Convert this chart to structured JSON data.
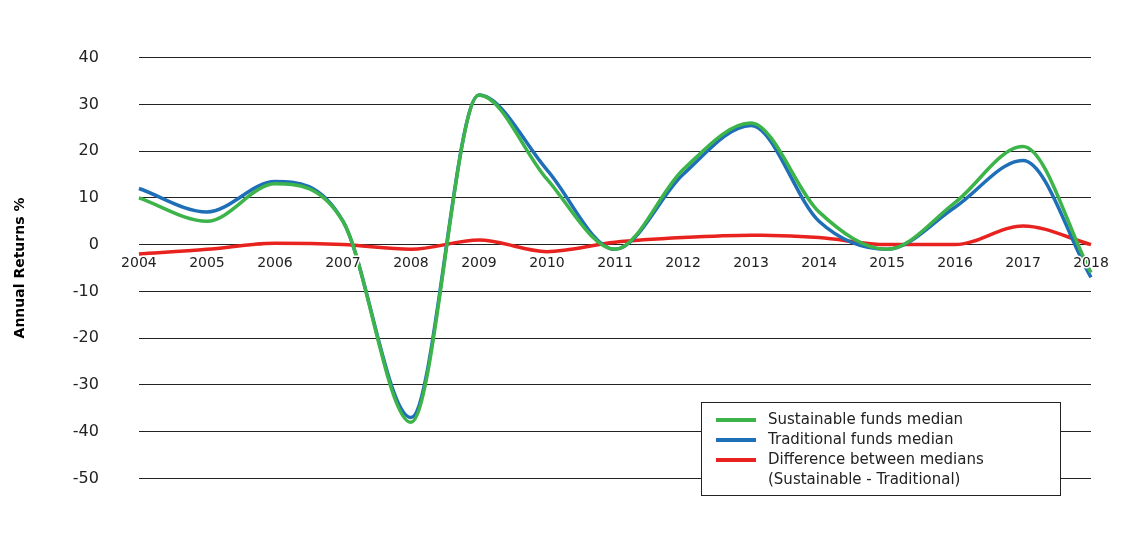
{
  "chart_data": {
    "type": "line",
    "ylabel": "Annual Returns %",
    "categories": [
      "2004",
      "2005",
      "2006",
      "2007",
      "2008",
      "2009",
      "2010",
      "2011",
      "2012",
      "2013",
      "2014",
      "2015",
      "2016",
      "2017",
      "2018"
    ],
    "series": [
      {
        "name": "Sustainable funds median",
        "color": "#3cb44a",
        "values": [
          10,
          5,
          13,
          5,
          -38,
          32,
          14,
          -1,
          16,
          26,
          7,
          -1,
          9,
          21,
          -6
        ]
      },
      {
        "name": "Traditional funds median",
        "color": "#1f6fb8",
        "values": [
          12,
          7,
          13.5,
          5,
          -37,
          32,
          16,
          -1,
          15,
          25.5,
          5,
          -1,
          8,
          18,
          -7
        ]
      },
      {
        "name": "Difference between medians (Sustainable - Traditional)",
        "color": "#e8231f",
        "values": [
          -2,
          -1,
          0.3,
          0,
          -1,
          1,
          -1.5,
          0.5,
          1.5,
          2,
          1.5,
          0,
          0,
          4,
          0
        ]
      }
    ],
    "ylim": [
      -50,
      40
    ],
    "yticks": [
      -50,
      -40,
      -30,
      -20,
      -10,
      0,
      10,
      20,
      30,
      40
    ],
    "grid": "y",
    "legend": "bottom right"
  }
}
